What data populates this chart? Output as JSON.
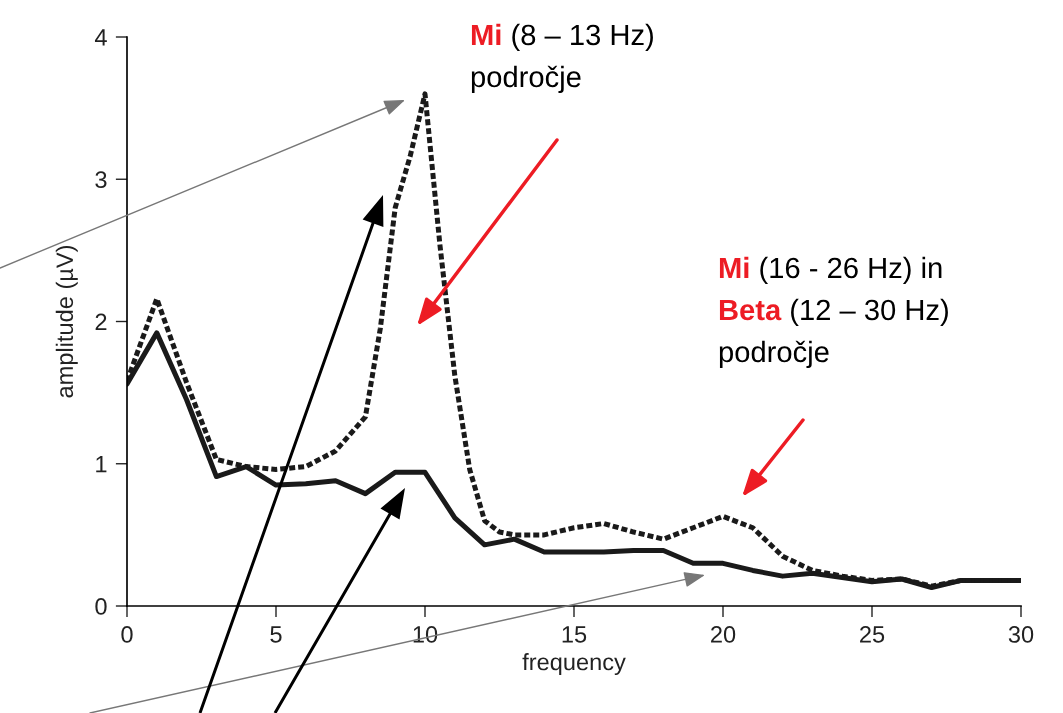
{
  "chart_data": {
    "type": "line",
    "xlabel": "frequency",
    "ylabel": "amplitude (µV)",
    "xlim": [
      0,
      30
    ],
    "ylim": [
      0,
      4
    ],
    "xticks": [
      0,
      5,
      10,
      15,
      20,
      25,
      30
    ],
    "yticks": [
      0,
      1,
      2,
      3,
      4
    ],
    "grid": false,
    "legend": false,
    "marker": "none",
    "series": [
      {
        "color": "#1a1a1a",
        "line_style": "solid",
        "x": [
          0,
          1,
          2,
          3,
          4,
          5,
          6,
          7,
          8,
          9,
          10,
          11,
          12,
          13,
          14,
          15,
          16,
          17,
          18,
          19,
          20,
          21,
          22,
          23,
          24,
          25,
          26,
          27,
          28,
          29,
          30
        ],
        "values": [
          1.56,
          1.92,
          1.45,
          0.91,
          0.98,
          0.85,
          0.86,
          0.88,
          0.79,
          0.94,
          0.94,
          0.62,
          0.43,
          0.47,
          0.38,
          0.38,
          0.38,
          0.39,
          0.39,
          0.3,
          0.3,
          0.25,
          0.21,
          0.23,
          0.2,
          0.17,
          0.19,
          0.13,
          0.18,
          0.18,
          0.18
        ]
      },
      {
        "color": "#1a1a1a",
        "line_style": "dashed",
        "x": [
          0,
          1,
          2,
          3,
          4,
          5,
          6,
          7,
          8,
          8.5,
          9,
          9.5,
          10,
          10.5,
          11,
          11.5,
          12,
          12.5,
          13,
          14,
          15,
          16,
          17,
          18,
          19,
          20,
          21,
          22,
          23,
          24,
          25,
          26,
          27,
          28,
          29,
          30
        ],
        "values": [
          1.58,
          2.16,
          1.57,
          1.03,
          0.98,
          0.96,
          0.98,
          1.09,
          1.33,
          1.95,
          2.8,
          3.16,
          3.6,
          2.54,
          1.62,
          0.96,
          0.6,
          0.52,
          0.5,
          0.5,
          0.55,
          0.58,
          0.52,
          0.47,
          0.55,
          0.63,
          0.55,
          0.35,
          0.25,
          0.21,
          0.18,
          0.19,
          0.14,
          0.18,
          0.18,
          0.18
        ]
      }
    ],
    "annotations": [
      "Mi (8 – 13 Hz)\npodročje",
      "Mi (16 - 26 Hz) in\nBeta (12 – 30 Hz)\npodročje"
    ]
  }
}
